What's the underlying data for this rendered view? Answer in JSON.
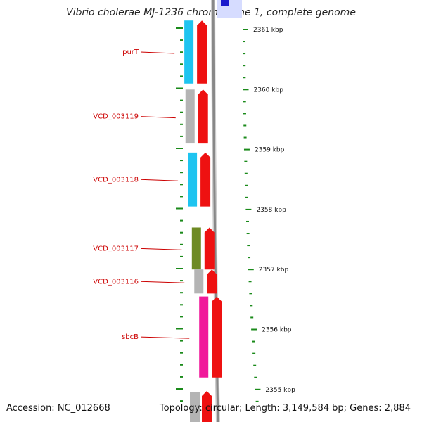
{
  "title": "Vibrio cholerae MJ-1236 chromosome 1, complete genome",
  "accession": "Accession: NC_012668",
  "summary": "Topology: circular; Length: 3,149,584 bp; Genes: 2,884",
  "colors": {
    "forward_strand_arrow": "#ee1111",
    "tick": "#1a8a1a",
    "label": "#cc0000",
    "backbone": "#888888",
    "top_highlight": "#1a1acc"
  },
  "genes": [
    {
      "name": "purT",
      "color": "#1ec4f0",
      "start_kbp": 2360.1,
      "end_kbp": 2361.15
    },
    {
      "name": "VCD_003119",
      "color": "#b4b4b4",
      "start_kbp": 2359.1,
      "end_kbp": 2360.0
    },
    {
      "name": "VCD_003118",
      "color": "#1ec4f0",
      "start_kbp": 2358.05,
      "end_kbp": 2358.95
    },
    {
      "name": "VCD_003117",
      "color": "#6e8a24",
      "start_kbp": 2357.0,
      "end_kbp": 2357.7
    },
    {
      "name": "VCD_003116",
      "color": "#b4b4b4",
      "start_kbp": 2356.6,
      "end_kbp": 2357.0
    },
    {
      "name": "sbcB",
      "color": "#f0199a",
      "start_kbp": 2355.2,
      "end_kbp": 2356.55
    }
  ],
  "scale_labels": [
    "2361 kbp",
    "2360 kbp",
    "2359 kbp",
    "2358 kbp",
    "2357 kbp",
    "2356 kbp",
    "2355 kbp"
  ]
}
